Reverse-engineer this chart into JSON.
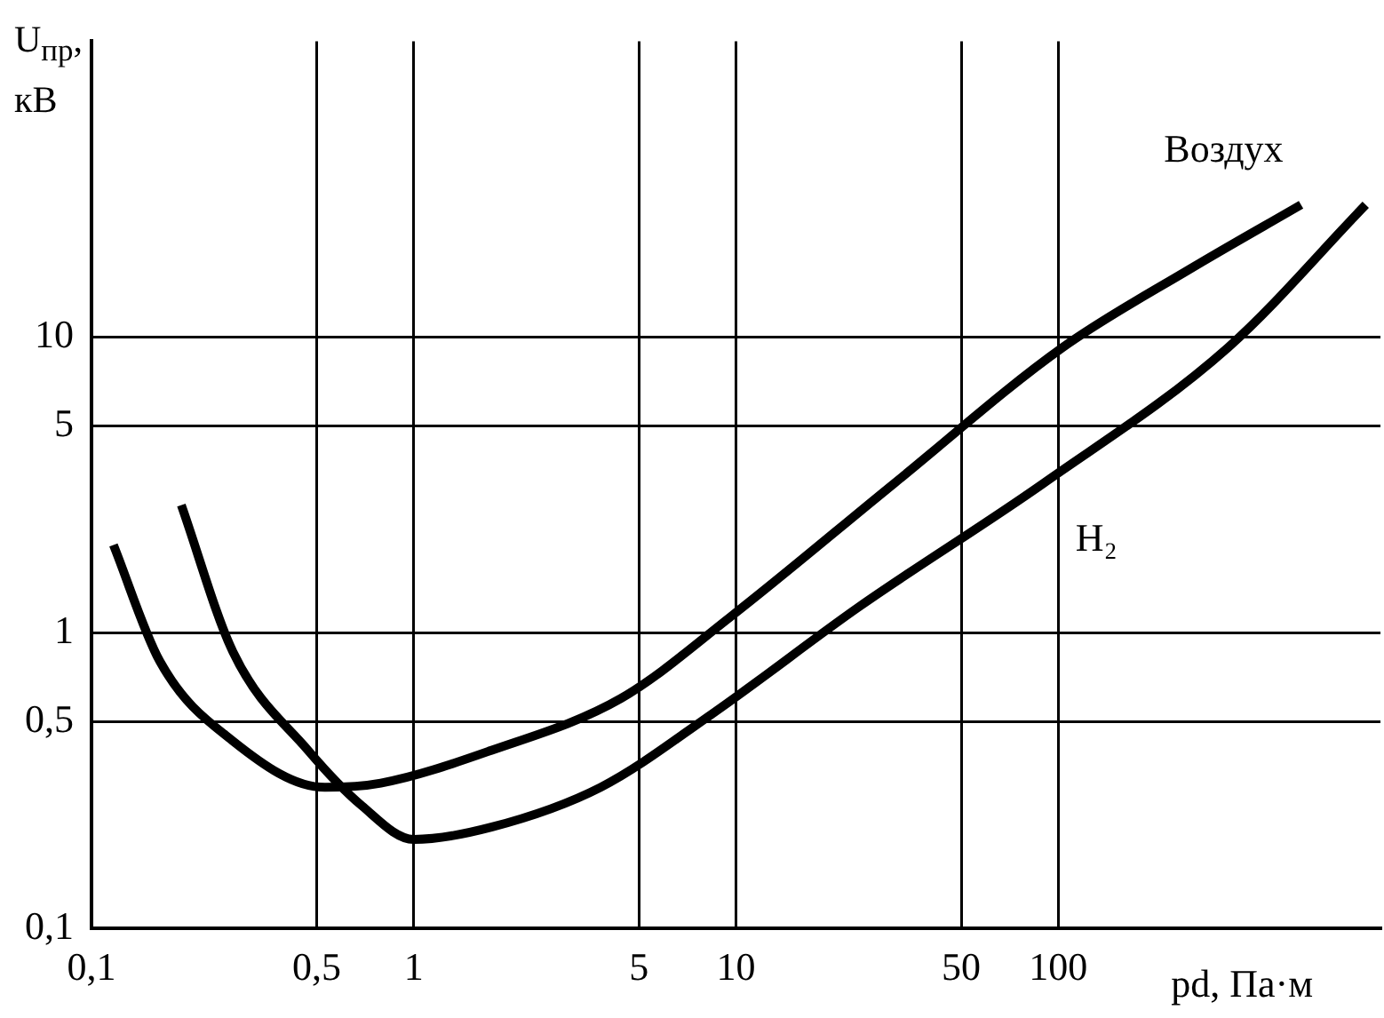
{
  "chart_data": {
    "type": "line",
    "xlabel": "pd, Па·м",
    "ylabel": "U$_{пр}$, кВ",
    "log": "xy",
    "grid": true,
    "legend": false,
    "marker": "none",
    "line_style": "solid",
    "xlim": [
      0.1,
      1000
    ],
    "ylim": [
      0.1,
      100
    ],
    "xticks": [
      {
        "value": 0.1,
        "label": "0,1"
      },
      {
        "value": 0.5,
        "label": "0,5"
      },
      1,
      5,
      10,
      50,
      100
    ],
    "yticks": [
      {
        "value": 0.1,
        "label": "0,1"
      },
      {
        "value": 0.5,
        "label": "0,5"
      },
      1,
      5,
      10
    ],
    "series": [
      {
        "name": "Воздух",
        "color": "#000000",
        "x": [
          0.117,
          0.163,
          0.275,
          0.53,
          0.79,
          1.74,
          4.4,
          9.6,
          31,
          103,
          257,
          567
        ],
        "values": [
          1.98,
          0.8,
          0.43,
          0.3,
          0.31,
          0.4,
          0.6,
          1.13,
          3.2,
          9.2,
          17,
          28
        ]
      },
      {
        "name": "H₂",
        "color": "#000000",
        "x": [
          0.19,
          0.275,
          0.47,
          0.69,
          1.0,
          1.74,
          3.8,
          8.4,
          24,
          90,
          336,
          900
        ],
        "values": [
          2.7,
          0.86,
          0.4,
          0.26,
          0.2,
          0.22,
          0.3,
          0.53,
          1.22,
          3.2,
          9.2,
          28
        ]
      }
    ]
  }
}
